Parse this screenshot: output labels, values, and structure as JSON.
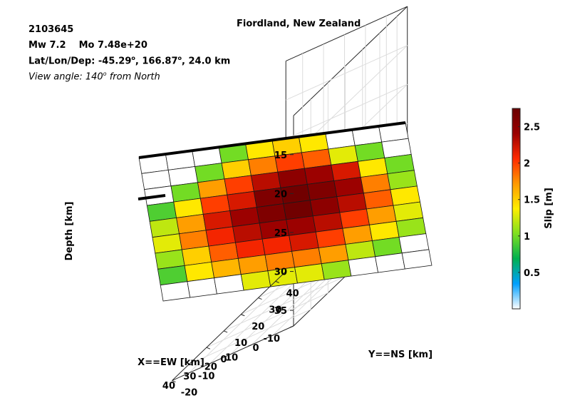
{
  "chart_data": {
    "type": "heatmap",
    "title": "Fiordland, New Zealand",
    "header": {
      "event_id": "2103645",
      "mw": "Mw 7.2",
      "mo": "Mo 7.48e+20",
      "location_prefix": "Lat/Lon/Dep: -45.29",
      "location_lon": ", 166.87",
      "location_suffix": ", 24.0 km",
      "degree_mark": "o",
      "view_prefix": "View angle: 140",
      "view_suffix": " from North"
    },
    "xlabel": "X==EW [km]",
    "ylabel": "Y==NS [km]",
    "zlabel": "Depth [km]",
    "colorbar_label": "Slip [m]",
    "x_ticks": [
      "-10",
      "0",
      "10",
      "20",
      "30",
      "40"
    ],
    "y_ticks": [
      "-20",
      "-10",
      "0",
      "10",
      "20",
      "30",
      "40"
    ],
    "z_ticks": [
      "15",
      "20",
      "25",
      "30",
      "35"
    ],
    "colorbar_ticks": [
      "0.5",
      "1",
      "1.5",
      "2",
      "2.5"
    ],
    "colorbar_range": [
      0,
      2.75
    ],
    "colormap": [
      "#ffffff",
      "#00a0ff",
      "#00b050",
      "#7fe020",
      "#ffee00",
      "#ff9900",
      "#ff2a00",
      "#9a0000",
      "#6a0000"
    ],
    "grid": true,
    "strike_rows": 10,
    "dip_cols": 9,
    "slip": [
      [
        0.0,
        0.0,
        0.0,
        0.9,
        1.2,
        1.3,
        1.1,
        0.9,
        0.0
      ],
      [
        0.0,
        0.0,
        1.0,
        1.4,
        1.7,
        1.8,
        1.5,
        1.4,
        0.0
      ],
      [
        0.0,
        1.0,
        1.7,
        2.0,
        2.2,
        2.1,
        1.9,
        1.6,
        0.0
      ],
      [
        1.0,
        1.5,
        2.0,
        2.2,
        2.4,
        2.3,
        2.1,
        1.7,
        1.3
      ],
      [
        1.4,
        1.8,
        2.3,
        2.6,
        2.6,
        2.4,
        2.1,
        1.8,
        1.3
      ],
      [
        1.5,
        2.0,
        2.5,
        2.7,
        2.7,
        2.4,
        2.2,
        1.8,
        1.3
      ],
      [
        1.4,
        1.9,
        2.4,
        2.6,
        2.5,
        2.3,
        2.0,
        1.7,
        1.1
      ],
      [
        0.0,
        1.3,
        2.2,
        2.4,
        2.3,
        2.0,
        1.7,
        1.2,
        0.0
      ],
      [
        0.0,
        1.0,
        1.4,
        1.8,
        1.9,
        1.7,
        1.4,
        1.0,
        0.0
      ],
      [
        0.0,
        0.0,
        1.0,
        1.1,
        1.4,
        1.3,
        1.1,
        0.0,
        0.0
      ]
    ]
  }
}
